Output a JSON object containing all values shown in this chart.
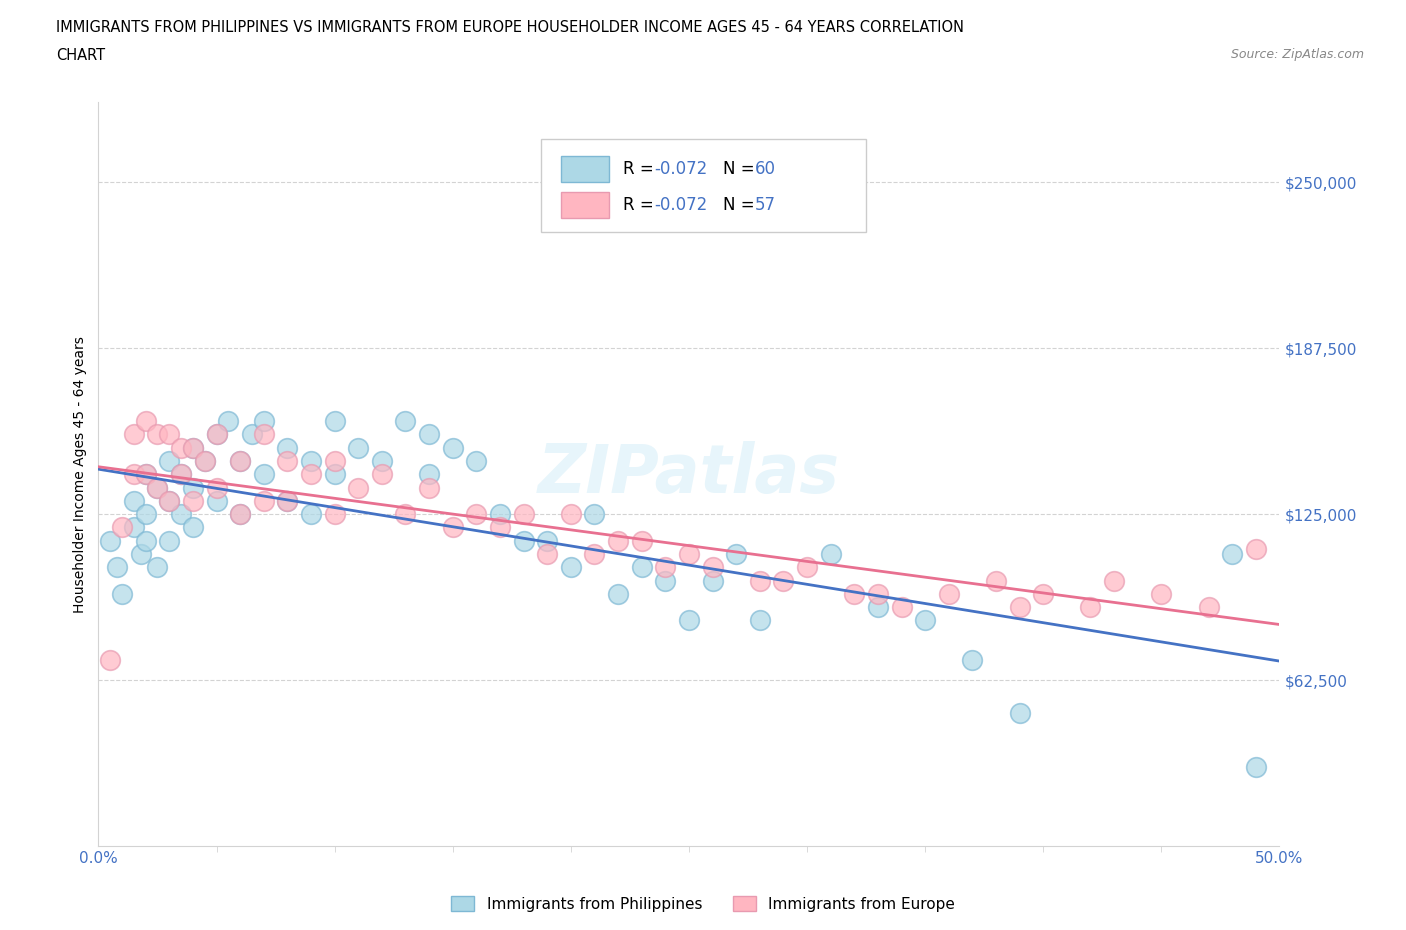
{
  "title_line1": "IMMIGRANTS FROM PHILIPPINES VS IMMIGRANTS FROM EUROPE HOUSEHOLDER INCOME AGES 45 - 64 YEARS CORRELATION",
  "title_line2": "CHART",
  "source_text": "Source: ZipAtlas.com",
  "ylabel": "Householder Income Ages 45 - 64 years",
  "xlim": [
    0.0,
    0.5
  ],
  "ylim": [
    0,
    280000
  ],
  "xtick_values": [
    0.0,
    0.5
  ],
  "xtick_labels": [
    "0.0%",
    "50.0%"
  ],
  "ytick_values": [
    62500,
    125000,
    187500,
    250000
  ],
  "ytick_labels": [
    "$62,500",
    "$125,000",
    "$187,500",
    "$250,000"
  ],
  "color_phil": "#ADD8E6",
  "color_europe": "#FFB6C1",
  "edge_color_phil": "#7EB8D4",
  "edge_color_europe": "#E89AB0",
  "line_color_phil": "#4472C4",
  "line_color_europe": "#E87090",
  "r_value_color": "#4472C4",
  "axis_label_color": "#4472C4",
  "watermark": "ZIPatlas",
  "legend_r_phil": "-0.072",
  "legend_n_phil": "60",
  "legend_r_europe": "-0.072",
  "legend_n_europe": "57",
  "legend_label_phil": "Immigrants from Philippines",
  "legend_label_europe": "Immigrants from Europe",
  "phil_x": [
    0.005,
    0.008,
    0.01,
    0.015,
    0.015,
    0.018,
    0.02,
    0.02,
    0.02,
    0.025,
    0.025,
    0.03,
    0.03,
    0.03,
    0.035,
    0.035,
    0.04,
    0.04,
    0.04,
    0.045,
    0.05,
    0.05,
    0.055,
    0.06,
    0.06,
    0.065,
    0.07,
    0.07,
    0.08,
    0.08,
    0.09,
    0.09,
    0.1,
    0.1,
    0.11,
    0.12,
    0.13,
    0.14,
    0.14,
    0.15,
    0.16,
    0.17,
    0.18,
    0.19,
    0.2,
    0.21,
    0.22,
    0.23,
    0.24,
    0.25,
    0.26,
    0.27,
    0.28,
    0.31,
    0.33,
    0.35,
    0.37,
    0.39,
    0.48,
    0.49
  ],
  "phil_y": [
    115000,
    105000,
    95000,
    130000,
    120000,
    110000,
    140000,
    125000,
    115000,
    135000,
    105000,
    145000,
    130000,
    115000,
    140000,
    125000,
    150000,
    135000,
    120000,
    145000,
    155000,
    130000,
    160000,
    145000,
    125000,
    155000,
    160000,
    140000,
    150000,
    130000,
    145000,
    125000,
    160000,
    140000,
    150000,
    145000,
    160000,
    155000,
    140000,
    150000,
    145000,
    125000,
    115000,
    115000,
    105000,
    125000,
    95000,
    105000,
    100000,
    85000,
    100000,
    110000,
    85000,
    110000,
    90000,
    85000,
    70000,
    50000,
    110000,
    30000
  ],
  "europe_x": [
    0.005,
    0.01,
    0.015,
    0.015,
    0.02,
    0.02,
    0.025,
    0.025,
    0.03,
    0.03,
    0.035,
    0.035,
    0.04,
    0.04,
    0.045,
    0.05,
    0.05,
    0.06,
    0.06,
    0.07,
    0.07,
    0.08,
    0.08,
    0.09,
    0.1,
    0.1,
    0.11,
    0.12,
    0.13,
    0.14,
    0.15,
    0.16,
    0.17,
    0.18,
    0.19,
    0.2,
    0.21,
    0.22,
    0.23,
    0.24,
    0.25,
    0.26,
    0.28,
    0.29,
    0.3,
    0.32,
    0.33,
    0.34,
    0.36,
    0.38,
    0.39,
    0.4,
    0.42,
    0.43,
    0.45,
    0.47,
    0.49
  ],
  "europe_y": [
    70000,
    120000,
    155000,
    140000,
    160000,
    140000,
    155000,
    135000,
    155000,
    130000,
    150000,
    140000,
    150000,
    130000,
    145000,
    155000,
    135000,
    145000,
    125000,
    155000,
    130000,
    145000,
    130000,
    140000,
    145000,
    125000,
    135000,
    140000,
    125000,
    135000,
    120000,
    125000,
    120000,
    125000,
    110000,
    125000,
    110000,
    115000,
    115000,
    105000,
    110000,
    105000,
    100000,
    100000,
    105000,
    95000,
    95000,
    90000,
    95000,
    100000,
    90000,
    95000,
    90000,
    100000,
    95000,
    90000,
    112000
  ]
}
